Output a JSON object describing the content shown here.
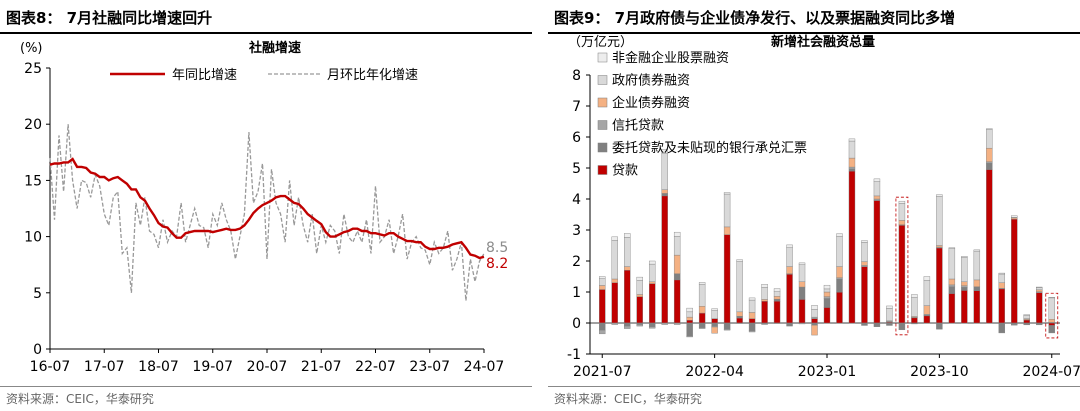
{
  "chart_data": [
    {
      "type": "line",
      "figure_title": "图表8： 7月社融同比增速回升",
      "title": "社融增速",
      "ylabel": "(%)",
      "ylim": [
        0,
        25
      ],
      "yticks": [
        "0",
        "5",
        "10",
        "15",
        "20",
        "25"
      ],
      "xlim": [
        0,
        96
      ],
      "xticks": [
        {
          "label": "16-07",
          "i": 0
        },
        {
          "label": "17-07",
          "i": 12
        },
        {
          "label": "18-07",
          "i": 24
        },
        {
          "label": "19-07",
          "i": 36
        },
        {
          "label": "20-07",
          "i": 48
        },
        {
          "label": "21-07",
          "i": 60
        },
        {
          "label": "22-07",
          "i": 72
        },
        {
          "label": "23-07",
          "i": 84
        },
        {
          "label": "24-07",
          "i": 96
        }
      ],
      "legend_location": "top",
      "series": [
        {
          "name": "年同比增速",
          "color": "#c00000",
          "style": "solid",
          "values": [
            16.4,
            16.5,
            16.5,
            16.6,
            16.6,
            16.9,
            16.2,
            16.2,
            16.1,
            15.7,
            15.6,
            15.3,
            15.3,
            15.0,
            15.2,
            15.3,
            15.0,
            14.7,
            14.2,
            14.2,
            13.5,
            13.2,
            12.5,
            11.9,
            11.2,
            10.9,
            10.8,
            10.3,
            9.9,
            9.9,
            10.3,
            10.4,
            10.5,
            10.5,
            10.5,
            10.5,
            10.4,
            10.5,
            10.6,
            10.7,
            10.6,
            10.6,
            10.7,
            11.0,
            11.5,
            12.1,
            12.5,
            12.8,
            13.0,
            13.2,
            13.5,
            13.6,
            13.6,
            13.3,
            13.0,
            12.9,
            12.5,
            12.0,
            11.7,
            11.4,
            11.1,
            10.4,
            10.0,
            10.0,
            10.2,
            10.4,
            10.5,
            10.7,
            10.7,
            10.5,
            10.5,
            10.3,
            10.3,
            10.2,
            10.1,
            10.3,
            10.3,
            10.0,
            9.8,
            9.6,
            9.6,
            9.5,
            9.5,
            9.1,
            8.9,
            8.9,
            9.0,
            9.0,
            9.1,
            9.3,
            9.4,
            9.5,
            9.0,
            8.4,
            8.3,
            8.1,
            8.2
          ]
        },
        {
          "name": "月环比年化增速",
          "color": "#999999",
          "style": "dashed",
          "values": [
            17.0,
            11.5,
            19.0,
            14.0,
            20.0,
            15.0,
            12.5,
            15.0,
            14.8,
            13.5,
            15.5,
            14.5,
            12.0,
            11.0,
            13.5,
            14.0,
            8.5,
            9.0,
            5.0,
            13.0,
            11.0,
            13.5,
            10.5,
            10.2,
            9.0,
            11.5,
            9.5,
            10.5,
            10.0,
            13.0,
            9.5,
            11.0,
            12.5,
            11.0,
            10.8,
            9.0,
            12.0,
            11.0,
            13.0,
            11.5,
            10.5,
            8.0,
            10.0,
            12.0,
            19.3,
            13.0,
            14.0,
            16.5,
            8.0,
            16.0,
            13.0,
            12.0,
            9.5,
            15.0,
            11.0,
            13.5,
            11.0,
            9.5,
            12.0,
            8.5,
            11.0,
            9.5,
            11.0,
            10.5,
            8.5,
            12.0,
            10.0,
            9.5,
            10.5,
            9.5,
            11.5,
            8.5,
            14.5,
            9.5,
            10.0,
            11.5,
            8.5,
            10.0,
            12.0,
            8.0,
            9.5,
            10.0,
            9.0,
            8.8,
            7.5,
            9.5,
            8.5,
            9.0,
            10.5,
            7.0,
            8.0,
            9.5,
            4.3,
            8.0,
            6.0,
            7.8,
            8.5
          ]
        }
      ],
      "end_labels": {
        "yoy": "8.2",
        "mom": "8.5"
      },
      "source": "资料来源：CEIC，华泰研究"
    },
    {
      "type": "bar",
      "stacked": true,
      "figure_title": "图表9： 7月政府债与企业债净发行、以及票据融资同比多增",
      "title": "新增社会融资总量",
      "ylabel": "（万亿元）",
      "ylim": [
        -1,
        8
      ],
      "yticks": [
        "-1",
        "0",
        "1",
        "2",
        "3",
        "4",
        "5",
        "6",
        "7",
        "8"
      ],
      "xticks": [
        {
          "label": "2021-07",
          "i": 0
        },
        {
          "label": "2022-04",
          "i": 9
        },
        {
          "label": "2023-01",
          "i": 18
        },
        {
          "label": "2023-10",
          "i": 27
        },
        {
          "label": "2024-07",
          "i": 36
        }
      ],
      "highlight_indices": [
        24,
        36
      ],
      "series": [
        {
          "name": "非金融企业股票融资",
          "color": "#ededed",
          "values": [
            0.07,
            0.12,
            0.13,
            0.11,
            0.1,
            0.12,
            0.14,
            0.12,
            0.07,
            0.06,
            0.05,
            0.06,
            0.07,
            0.1,
            0.1,
            0.09,
            0.06,
            0.13,
            0.12,
            0.08,
            0.07,
            0.06,
            0.09,
            0.08,
            0.07,
            0.1,
            0.12,
            0.05,
            0.03,
            0.04,
            0.04,
            0.03,
            0.03,
            0.05,
            0.03,
            0.02,
            0.02
          ]
        },
        {
          "name": "政府债券融资",
          "color": "#d9d9d9",
          "values": [
            0.22,
            1.24,
            0.94,
            0.45,
            0.57,
            1.18,
            0.6,
            0.17,
            0.7,
            0.26,
            1.06,
            1.62,
            0.4,
            0.39,
            0.15,
            0.61,
            0.55,
            0.25,
            0.1,
            0.98,
            0.55,
            0.62,
            0.46,
            0.4,
            0.55,
            0.61,
            0.82,
            1.59,
            0.98,
            0.78,
            0.93,
            0.6,
            0.28,
            0.02,
            0.1,
            0.07,
            0.69
          ]
        },
        {
          "name": "企业债券融资",
          "color": "#f4b183",
          "values": [
            0.13,
            0.12,
            0.12,
            0.07,
            0.06,
            0.12,
            0.6,
            0.1,
            0.22,
            -0.2,
            0.25,
            0.14,
            0.2,
            0.06,
            0.09,
            0.23,
            0.17,
            -0.32,
            0.15,
            0.36,
            0.29,
            0.12,
            0.1,
            0.01,
            0.14,
            0.03,
            0.28,
            0.05,
            0.19,
            0.13,
            0.22,
            0.44,
            0.18,
            0.04,
            0.03,
            0.06,
            0.1
          ]
        },
        {
          "name": "信托贷款",
          "color": "#a6a6a6",
          "values": [
            -0.12,
            -0.05,
            -0.08,
            -0.05,
            -0.05,
            -0.05,
            -0.05,
            -0.03,
            -0.03,
            -0.03,
            -0.03,
            -0.02,
            -0.04,
            -0.03,
            -0.02,
            0.02,
            -0.03,
            0.05,
            0.06,
            0.04,
            0.06,
            0.04,
            0.05,
            0.03,
            0.02,
            0.01,
            0.03,
            0.03,
            0.06,
            0.05,
            0.0,
            0.04,
            0.02,
            -0.02,
            0.01,
            0.03,
            0.02
          ]
        },
        {
          "name": "委托贷款及未贴现的银行承兑汇票",
          "color": "#808080",
          "values": [
            -0.23,
            0.0,
            -0.1,
            -0.05,
            -0.12,
            0.08,
            0.2,
            -0.42,
            -0.15,
            -0.1,
            -0.2,
            0.06,
            -0.25,
            -0.02,
            0.07,
            -0.1,
            0.4,
            -0.07,
            0.29,
            0.43,
            0.07,
            -0.08,
            -0.12,
            -0.08,
            -0.22,
            -0.03,
            0.02,
            -0.2,
            0.22,
            0.1,
            0.13,
            0.21,
            -0.32,
            -0.05,
            -0.06,
            -0.06,
            -0.24
          ]
        },
        {
          "name": "贷款",
          "color": "#c00000",
          "values": [
            1.08,
            1.3,
            1.7,
            0.85,
            1.27,
            4.1,
            1.39,
            0.09,
            0.32,
            0.14,
            2.85,
            0.16,
            0.14,
            0.7,
            0.7,
            1.57,
            0.76,
            0.14,
            0.5,
            0.99,
            4.9,
            1.82,
            3.95,
            0.03,
            3.15,
            0.17,
            0.23,
            2.42,
            0.95,
            1.05,
            1.04,
            4.95,
            1.1,
            3.35,
            0.1,
            0.98,
            -0.08
          ]
        }
      ],
      "source": "资料来源：CEIC，华泰研究"
    }
  ]
}
